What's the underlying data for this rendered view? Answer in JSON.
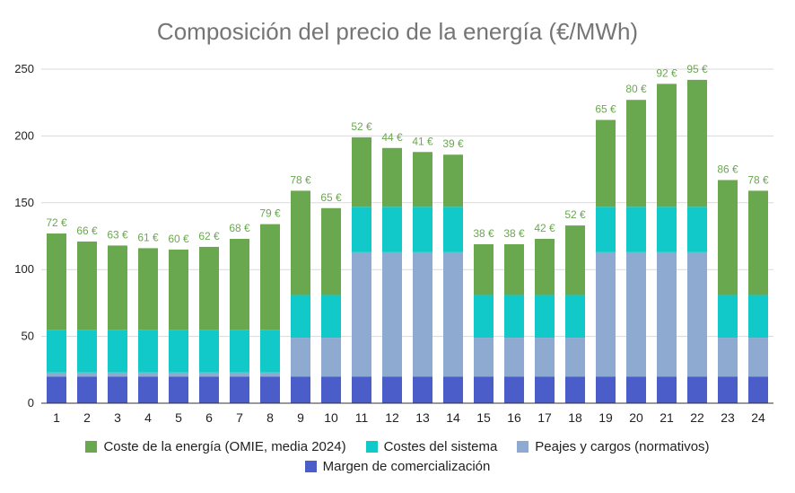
{
  "chart_data": {
    "type": "bar",
    "stacked": true,
    "title": "Composición del precio de la energía (€/MWh)",
    "xlabel": "",
    "ylabel": "",
    "ylim": [
      0,
      250
    ],
    "yticks": [
      0,
      50,
      100,
      150,
      200,
      250
    ],
    "categories": [
      "1",
      "2",
      "3",
      "4",
      "5",
      "6",
      "7",
      "8",
      "9",
      "10",
      "11",
      "12",
      "13",
      "14",
      "15",
      "16",
      "17",
      "18",
      "19",
      "20",
      "21",
      "22",
      "23",
      "24"
    ],
    "series": [
      {
        "name": "Margen de comercialización",
        "color": "#4a5dc9",
        "values": [
          20,
          20,
          20,
          20,
          20,
          20,
          20,
          20,
          20,
          20,
          20,
          20,
          20,
          20,
          20,
          20,
          20,
          20,
          20,
          20,
          20,
          20,
          20,
          20
        ]
      },
      {
        "name": "Peajes y cargos (normativos)",
        "color": "#8eaad0",
        "values": [
          3,
          3,
          3,
          3,
          3,
          3,
          3,
          3,
          29,
          29,
          93,
          93,
          93,
          93,
          29,
          29,
          29,
          29,
          93,
          93,
          93,
          93,
          29,
          29
        ]
      },
      {
        "name": "Costes del sistema",
        "color": "#12c9c9",
        "values": [
          32,
          32,
          32,
          32,
          32,
          32,
          32,
          32,
          32,
          32,
          34,
          34,
          34,
          34,
          32,
          32,
          32,
          32,
          34,
          34,
          34,
          34,
          32,
          32
        ]
      },
      {
        "name": "Coste de la energía (OMIE, media 2024)",
        "color": "#6aa84f",
        "values": [
          72,
          66,
          63,
          61,
          60,
          62,
          68,
          79,
          78,
          65,
          52,
          44,
          41,
          39,
          38,
          38,
          42,
          52,
          65,
          80,
          92,
          95,
          86,
          78
        ]
      }
    ],
    "data_labels": [
      "72 €",
      "66 €",
      "63 €",
      "61 €",
      "60 €",
      "62 €",
      "68 €",
      "79 €",
      "78 €",
      "65 €",
      "52 €",
      "44 €",
      "41 €",
      "39 €",
      "38 €",
      "38 €",
      "42 €",
      "52 €",
      "65 €",
      "80 €",
      "92 €",
      "95 €",
      "86 €",
      "78 €"
    ],
    "grid": true,
    "legend_position": "bottom",
    "legend_rows": [
      [
        "Coste de la energía (OMIE, media 2024)",
        "Costes del sistema",
        "Peajes y cargos (normativos)"
      ],
      [
        "Margen de comercialización"
      ]
    ]
  }
}
